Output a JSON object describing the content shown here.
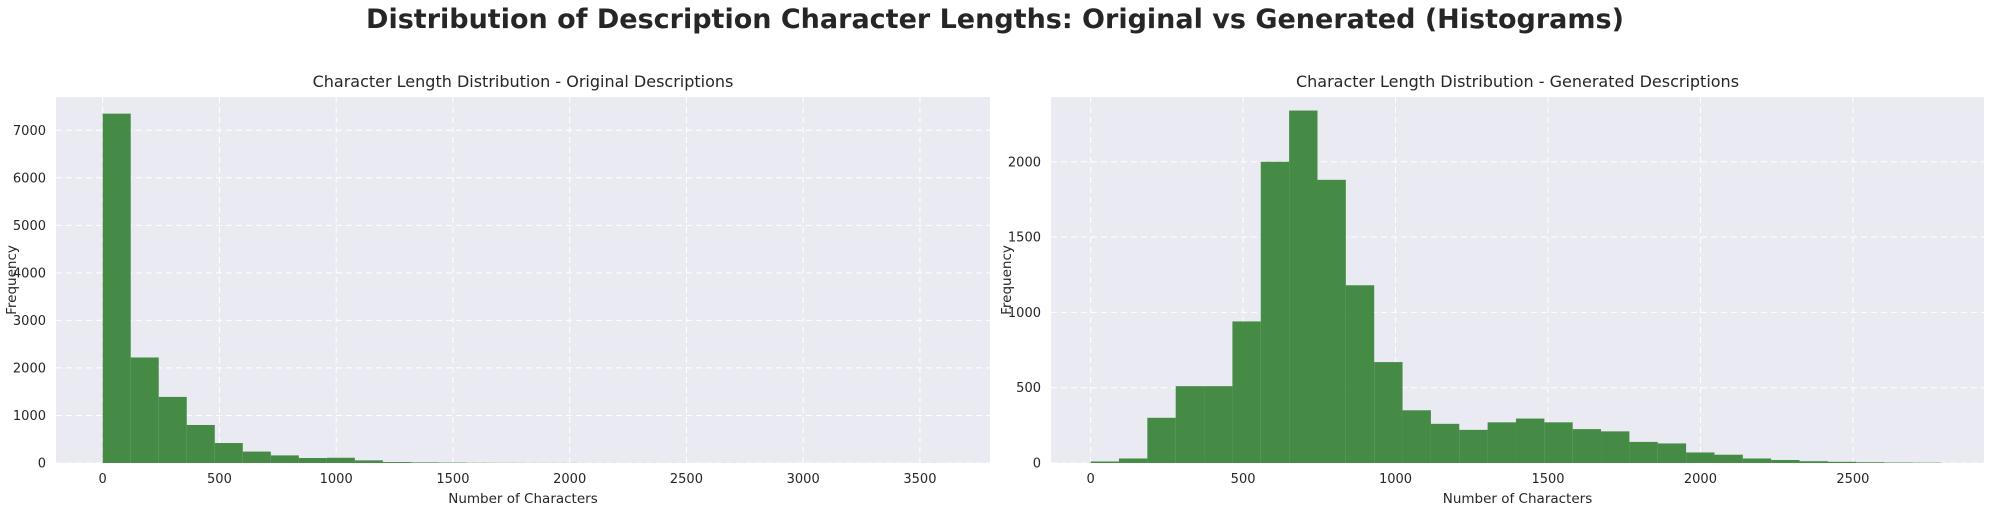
{
  "suptitle": "Distribution of Description Character Lengths: Original vs Generated (Histograms)",
  "style": {
    "bar_color": "#2e7d2e",
    "axes_bg": "#eaeaf2",
    "grid_color": "#ffffff"
  },
  "chart_data": [
    {
      "type": "bar",
      "subtype": "histogram",
      "title": "Character Length Distribution - Original Descriptions",
      "xlabel": "Number of Characters",
      "ylabel": "Frequency",
      "xlim": [
        -200,
        3800
      ],
      "ylim": [
        0,
        7700
      ],
      "xticks": [
        0,
        500,
        1000,
        1500,
        2000,
        2500,
        3000,
        3500
      ],
      "yticks": [
        0,
        1000,
        2000,
        3000,
        4000,
        5000,
        6000,
        7000
      ],
      "grid": true,
      "bin_start": 0,
      "bin_width": 120,
      "values": [
        7350,
        2220,
        1390,
        800,
        420,
        240,
        160,
        105,
        110,
        55,
        20,
        12,
        8,
        4,
        3,
        2,
        2,
        1,
        1,
        1,
        1,
        0,
        1,
        0,
        0,
        0,
        0,
        0,
        0,
        1
      ]
    },
    {
      "type": "bar",
      "subtype": "histogram",
      "title": "Character Length Distribution - Generated Descriptions",
      "xlabel": "Number of Characters",
      "ylabel": "Frequency",
      "xlim": [
        -130,
        2930
      ],
      "ylim": [
        0,
        2430
      ],
      "xticks": [
        0,
        500,
        1000,
        1500,
        2000,
        2500
      ],
      "yticks": [
        0,
        500,
        1000,
        1500,
        2000
      ],
      "grid": true,
      "bin_start": 0,
      "bin_width": 93,
      "values": [
        10,
        30,
        300,
        510,
        510,
        940,
        2000,
        2340,
        1880,
        1180,
        670,
        350,
        260,
        220,
        270,
        295,
        270,
        225,
        210,
        140,
        130,
        70,
        55,
        30,
        20,
        12,
        8,
        5,
        3,
        2
      ]
    }
  ]
}
